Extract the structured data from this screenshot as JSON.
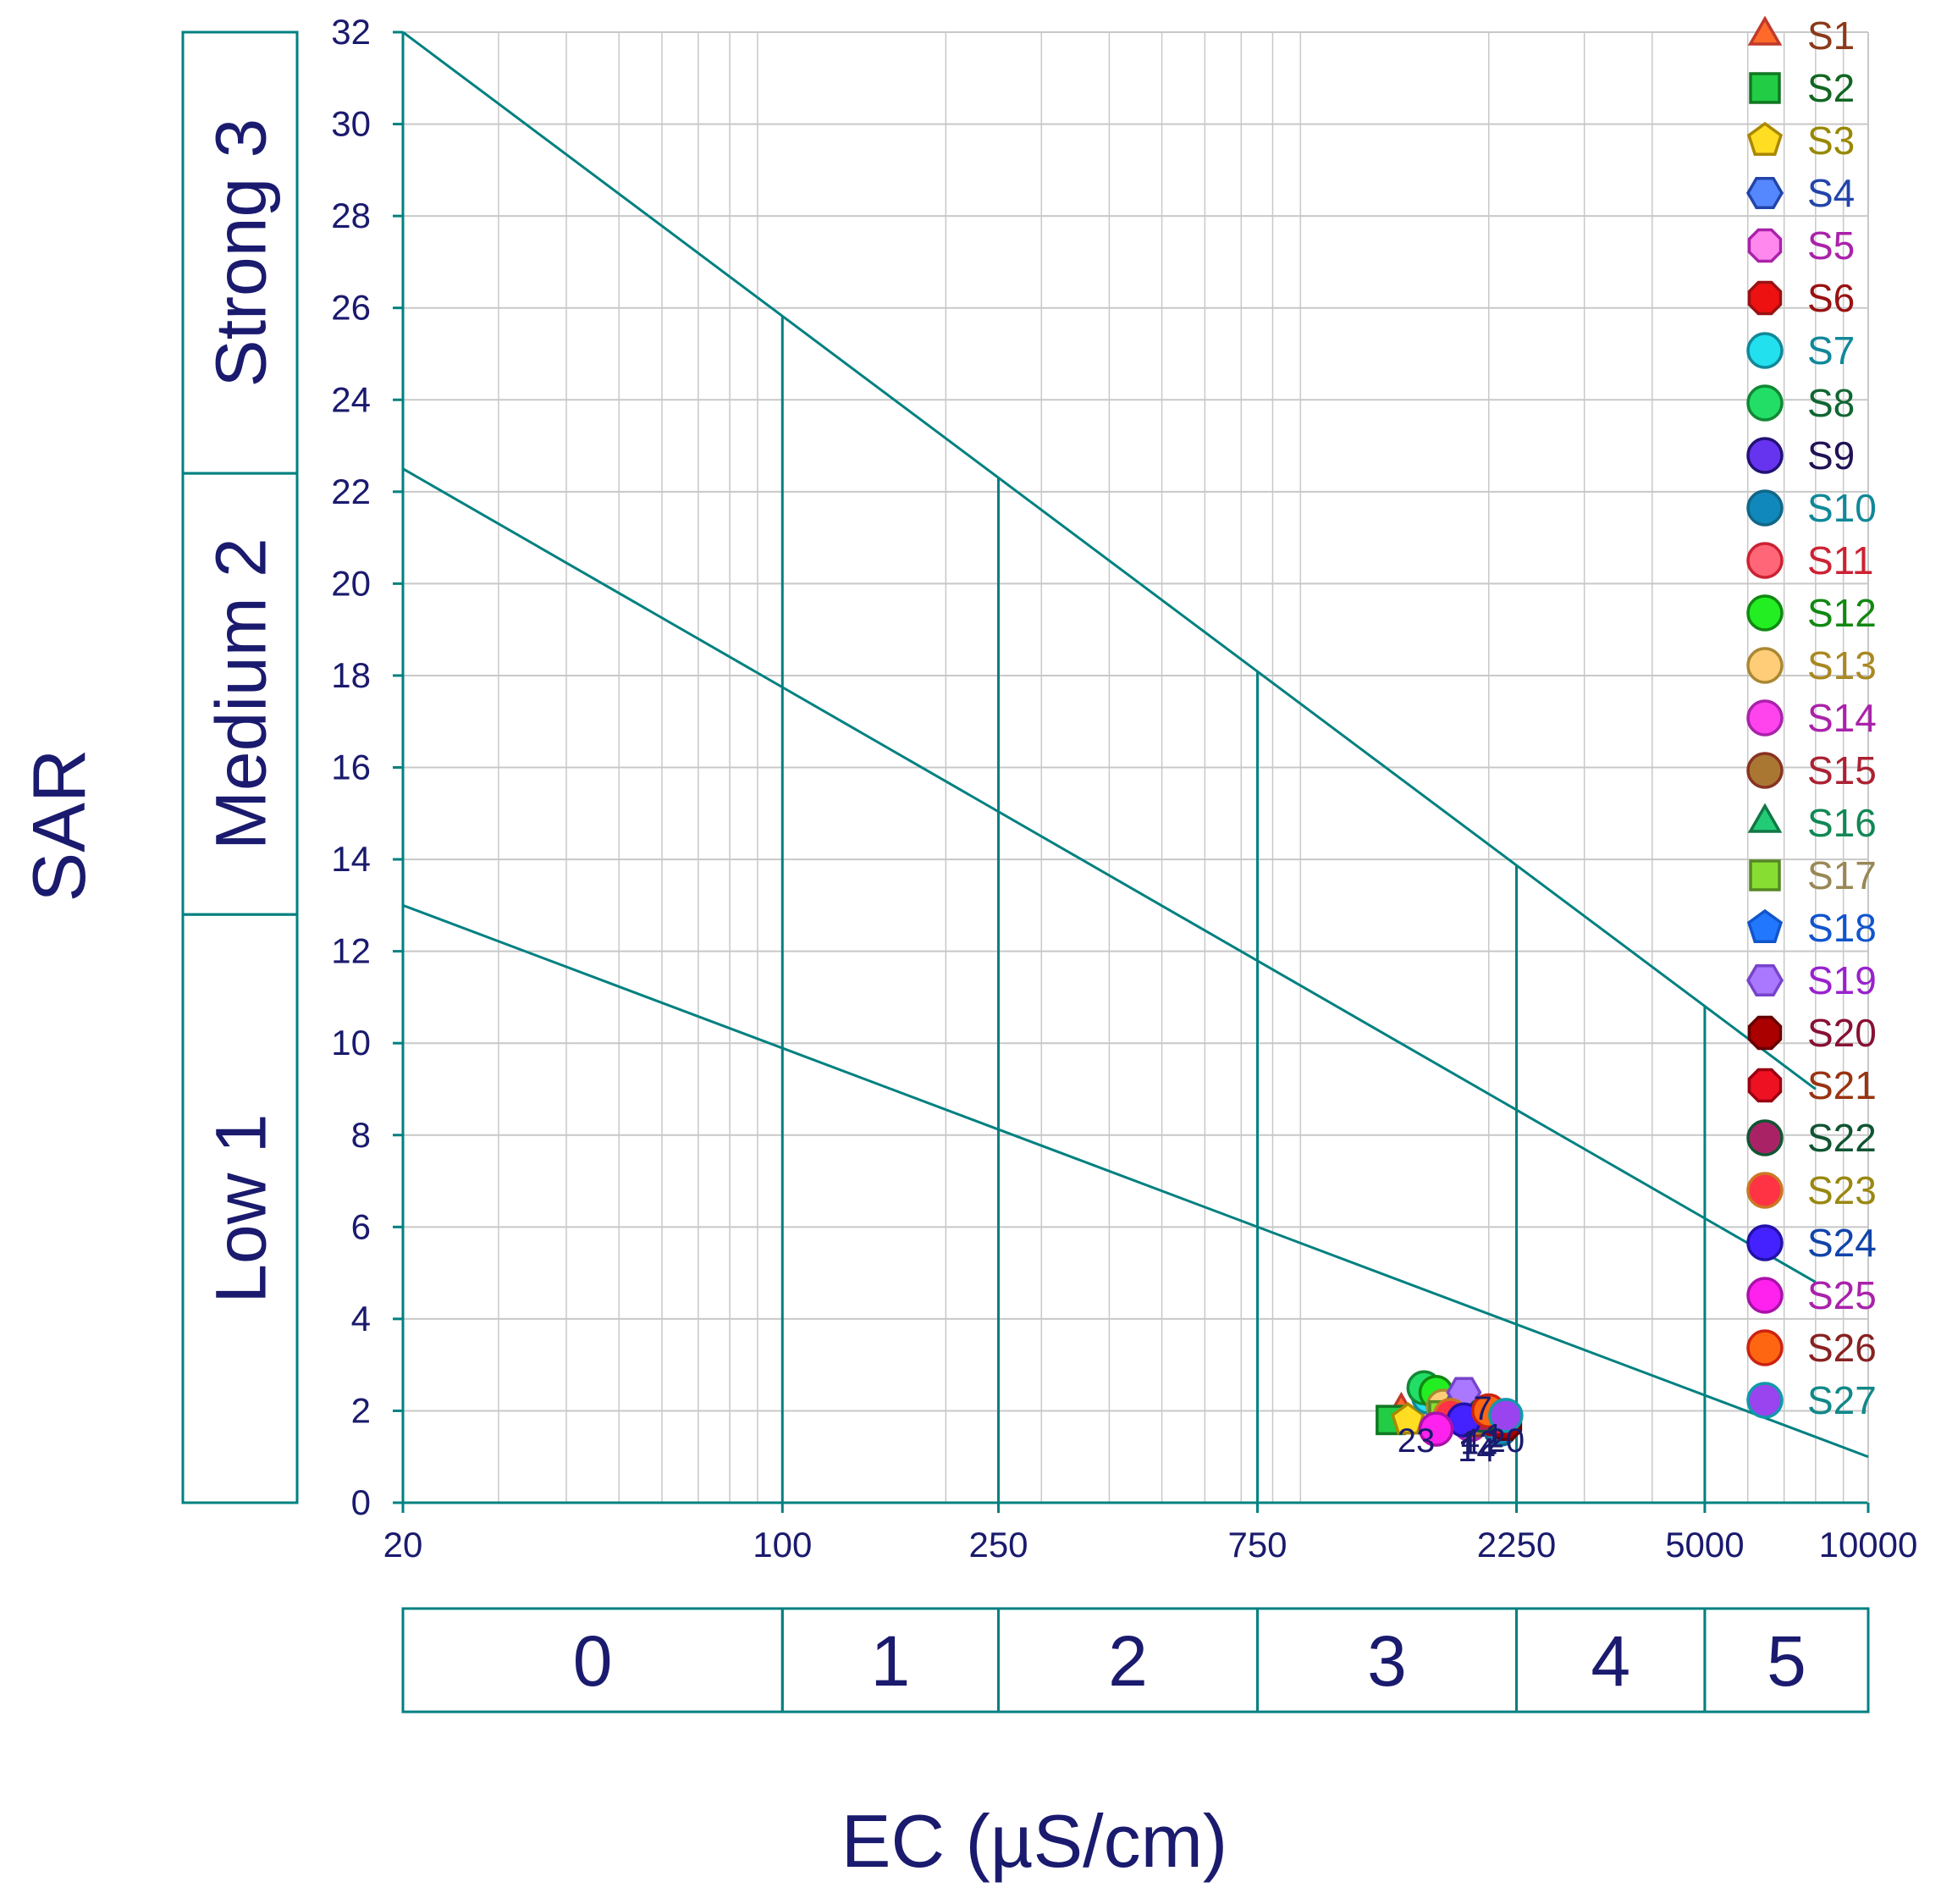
{
  "chart_data": {
    "type": "scatter",
    "xlabel": "EC (µS/cm)",
    "ylabel": "SAR",
    "x_scale": "log",
    "xlim": [
      20,
      10000
    ],
    "ylim": [
      0,
      32
    ],
    "x_ticks": [
      {
        "value": 20,
        "label": "20"
      },
      {
        "value": 100,
        "label": "100"
      },
      {
        "value": 250,
        "label": "250"
      },
      {
        "value": 750,
        "label": "750"
      },
      {
        "value": 2250,
        "label": "2250"
      },
      {
        "value": 5000,
        "label": "5000"
      },
      {
        "value": 10000,
        "label": "10000"
      }
    ],
    "y_ticks": [
      "0",
      "2",
      "4",
      "6",
      "8",
      "10",
      "12",
      "14",
      "16",
      "18",
      "20",
      "22",
      "24",
      "26",
      "28",
      "30",
      "32"
    ],
    "grid": true,
    "legend_position": "right",
    "colors": {
      "axis_text": "#1a1a6e",
      "boundary_lines": "#008080",
      "grid": "#c8c8c8"
    },
    "sodium_hazard_classes": [
      {
        "label": "Low 1",
        "from": 0,
        "to": 12.8
      },
      {
        "label": "Medium 2",
        "from": 12.8,
        "to": 22.4
      },
      {
        "label": "Strong 3",
        "from": 22.4,
        "to": 32
      }
    ],
    "salinity_classes": [
      {
        "label": "0",
        "from": 20,
        "to": 100
      },
      {
        "label": "1",
        "from": 100,
        "to": 250
      },
      {
        "label": "2",
        "from": 250,
        "to": 750
      },
      {
        "label": "3",
        "from": 750,
        "to": 2250
      },
      {
        "label": "4",
        "from": 2250,
        "to": 5000
      },
      {
        "label": "5",
        "from": 5000,
        "to": 10000
      }
    ],
    "boundary_lines": [
      {
        "from": [
          20,
          32
        ],
        "to": [
          8000,
          9
        ]
      },
      {
        "from": [
          20,
          22.5
        ],
        "to": [
          8000,
          4.8
        ]
      },
      {
        "from": [
          20,
          13
        ],
        "to": [
          10000,
          1.0
        ]
      }
    ],
    "series": [
      {
        "name": "S1",
        "marker": "triangle",
        "color": "#ff6a2a",
        "edge": "#c0392b",
        "text_color": "#8b3a1a",
        "x": 1380,
        "y": 2.0
      },
      {
        "name": "S2",
        "marker": "square",
        "color": "#22cc44",
        "edge": "#117722",
        "text_color": "#116622",
        "x": 1320,
        "y": 1.8
      },
      {
        "name": "S3",
        "marker": "pentagon",
        "color": "#ffdd22",
        "edge": "#aa8800",
        "text_color": "#998800",
        "x": 1420,
        "y": 1.8
      },
      {
        "name": "S4",
        "marker": "hexagon",
        "color": "#5588ff",
        "edge": "#2244aa",
        "text_color": "#2244aa",
        "x": 1700,
        "y": 1.9
      },
      {
        "name": "S5",
        "marker": "octagon",
        "color": "#ff88ee",
        "edge": "#aa22aa",
        "text_color": "#aa22aa",
        "x": 1750,
        "y": 2.0
      },
      {
        "name": "S6",
        "marker": "octagon",
        "color": "#ee1111",
        "edge": "#991111",
        "text_color": "#991111",
        "x": 1900,
        "y": 1.8
      },
      {
        "name": "S7",
        "marker": "circle",
        "color": "#22e0ee",
        "edge": "#118899",
        "text_color": "#118899",
        "x": 1550,
        "y": 2.3
      },
      {
        "name": "S8",
        "marker": "circle",
        "color": "#22dd66",
        "edge": "#118833",
        "text_color": "#116633",
        "x": 1520,
        "y": 2.5
      },
      {
        "name": "S9",
        "marker": "circle",
        "color": "#6633ee",
        "edge": "#221177",
        "text_color": "#221155",
        "x": 1800,
        "y": 1.9
      },
      {
        "name": "S10",
        "marker": "circle",
        "color": "#1188bb",
        "edge": "#116688",
        "text_color": "#118899",
        "x": 2100,
        "y": 1.6
      },
      {
        "name": "S11",
        "marker": "circle",
        "color": "#ff6677",
        "edge": "#cc2233",
        "text_color": "#cc2233",
        "x": 1650,
        "y": 2.2
      },
      {
        "name": "S12",
        "marker": "circle",
        "color": "#22ee22",
        "edge": "#118811",
        "text_color": "#118811",
        "x": 1600,
        "y": 2.4
      },
      {
        "name": "S13",
        "marker": "circle",
        "color": "#ffcc77",
        "edge": "#aa8833",
        "text_color": "#aa8822",
        "x": 1650,
        "y": 2.1
      },
      {
        "name": "S14",
        "marker": "circle",
        "color": "#ff44ee",
        "edge": "#aa22aa",
        "text_color": "#aa22aa",
        "x": 1850,
        "y": 1.7
      },
      {
        "name": "S15",
        "marker": "circle",
        "color": "#aa7733",
        "edge": "#883322",
        "text_color": "#aa2233",
        "x": 1900,
        "y": 1.8
      },
      {
        "name": "S16",
        "marker": "triangle",
        "color": "#22cc77",
        "edge": "#117744",
        "text_color": "#118855",
        "x": 1700,
        "y": 2.0
      },
      {
        "name": "S17",
        "marker": "square",
        "color": "#88dd33",
        "edge": "#558822",
        "text_color": "#998855",
        "x": 1650,
        "y": 1.9
      },
      {
        "name": "S18",
        "marker": "pentagon",
        "color": "#2277ff",
        "edge": "#1155cc",
        "text_color": "#1155cc",
        "x": 1750,
        "y": 2.0
      },
      {
        "name": "S19",
        "marker": "hexagon",
        "color": "#aa77ff",
        "edge": "#7744cc",
        "text_color": "#9922cc",
        "x": 1800,
        "y": 2.4
      },
      {
        "name": "S20",
        "marker": "octagon",
        "color": "#aa0000",
        "edge": "#660000",
        "text_color": "#881133",
        "x": 2150,
        "y": 1.7
      },
      {
        "name": "S21",
        "marker": "octagon",
        "color": "#ee1122",
        "edge": "#990011",
        "text_color": "#993311",
        "x": 2050,
        "y": 1.8
      },
      {
        "name": "S22",
        "marker": "circle",
        "color": "#aa2266",
        "edge": "#115533",
        "text_color": "#115533",
        "x": 1950,
        "y": 1.9
      },
      {
        "name": "S23",
        "marker": "circle",
        "color": "#ff3344",
        "edge": "#cc7722",
        "text_color": "#998811",
        "x": 1700,
        "y": 1.9
      },
      {
        "name": "S24",
        "marker": "circle",
        "color": "#4422ff",
        "edge": "#2211aa",
        "text_color": "#1144aa",
        "x": 1800,
        "y": 1.8
      },
      {
        "name": "S25",
        "marker": "circle",
        "color": "#ff22ee",
        "edge": "#aa11aa",
        "text_color": "#aa22aa",
        "x": 1600,
        "y": 1.6
      },
      {
        "name": "S26",
        "marker": "circle",
        "color": "#ff6611",
        "edge": "#cc2211",
        "text_color": "#882222",
        "x": 2000,
        "y": 2.0
      },
      {
        "name": "S27",
        "marker": "circle",
        "color": "#9944ee",
        "edge": "#1199aa",
        "text_color": "#118888",
        "x": 2150,
        "y": 1.9
      }
    ],
    "point_labels": [
      {
        "text": "23",
        "x": 1470,
        "y": 1.4
      },
      {
        "text": "7",
        "x": 1950,
        "y": 2.1
      },
      {
        "text": "4",
        "x": 1850,
        "y": 1.4
      },
      {
        "text": "14",
        "x": 1900,
        "y": 1.2
      },
      {
        "text": "12",
        "x": 1920,
        "y": 1.35
      },
      {
        "text": "1",
        "x": 2050,
        "y": 1.5
      },
      {
        "text": "20",
        "x": 2150,
        "y": 1.4
      }
    ]
  }
}
